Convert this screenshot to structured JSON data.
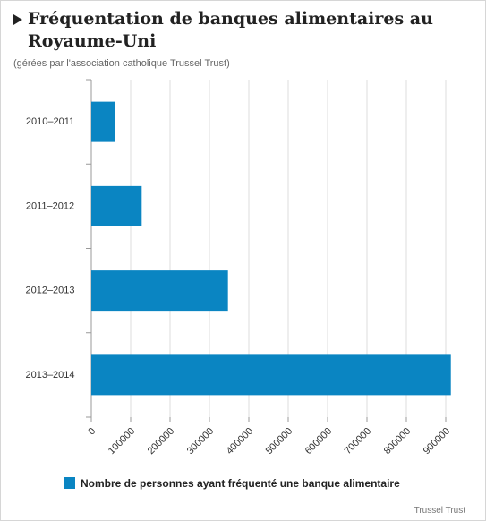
{
  "chart_data": {
    "type": "bar",
    "orientation": "horizontal",
    "title": "Fréquentation de banques alimentaires au Royaume-Uni",
    "subtitle": "(gérées par l'association catholique Trussel Trust)",
    "categories": [
      "2010–2011",
      "2011–2012",
      "2012–2013",
      "2013–2014"
    ],
    "series": [
      {
        "name": "Nombre de personnes ayant fréquenté une banque alimentaire",
        "color": "#0a85c2",
        "values": [
          61000,
          128000,
          347000,
          913000
        ]
      }
    ],
    "xlim": [
      0,
      900000
    ],
    "xticks": [
      0,
      100000,
      200000,
      300000,
      400000,
      500000,
      600000,
      700000,
      800000,
      900000
    ],
    "grid": true,
    "source": "Trussel Trust"
  }
}
